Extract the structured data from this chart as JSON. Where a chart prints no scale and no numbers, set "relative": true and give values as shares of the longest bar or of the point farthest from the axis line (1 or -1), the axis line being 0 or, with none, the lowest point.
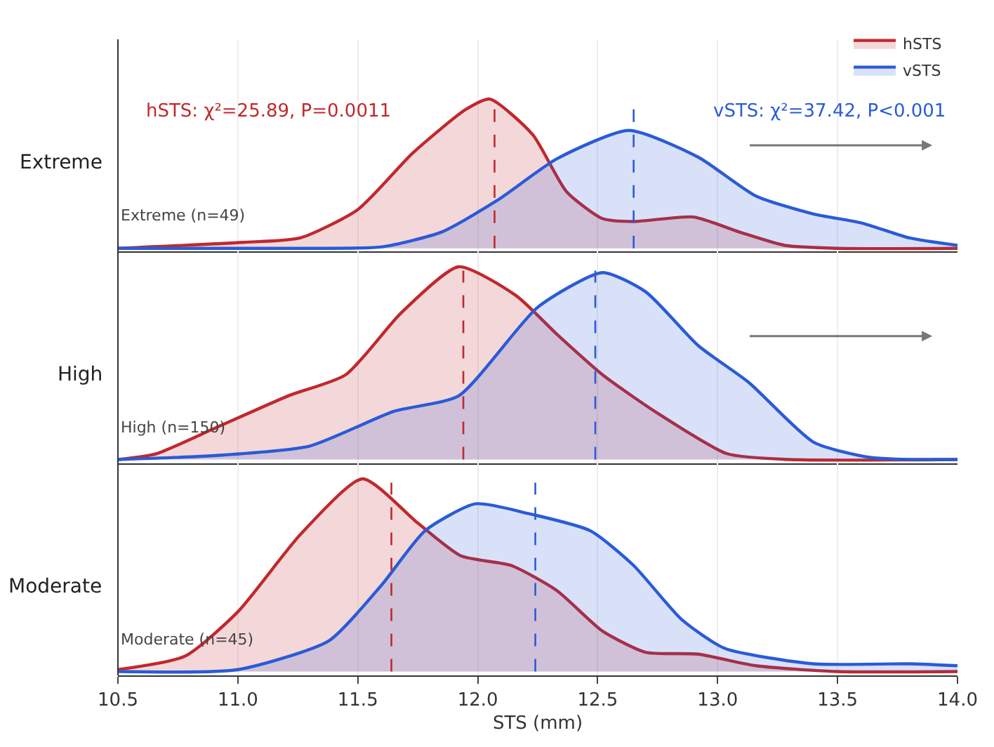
{
  "chart_data": [
    {
      "type": "area",
      "relative": true,
      "ylabel": "Extreme",
      "xlim": [
        10.5,
        14.0
      ],
      "tick_labels": false,
      "grid": "x",
      "legend": "top right",
      "annotations": [
        "hSTS: χ²=25.89, P=0.0011",
        "vSTS: χ²=37.42, P<0.001",
        "Extreme (n=49)"
      ],
      "ref_lines": [
        {
          "axis": "x",
          "value": 12.07,
          "color": "#c0282d",
          "line_style": "dashed"
        },
        {
          "axis": "x",
          "value": 12.65,
          "color": "#2a5bd7",
          "line_style": "dashed"
        }
      ],
      "series": [
        {
          "name": "hSTS",
          "color": "#c0282d",
          "x": [
            10.5,
            11.02,
            11.26,
            11.5,
            11.73,
            11.95,
            12.05,
            12.23,
            12.37,
            12.52,
            12.65,
            12.9,
            13.09,
            13.28,
            13.5,
            14.0
          ],
          "values": [
            0,
            0.04,
            0.07,
            0.26,
            0.64,
            0.93,
            1,
            0.76,
            0.38,
            0.2,
            0.18,
            0.21,
            0.11,
            0.02,
            0,
            0
          ]
        },
        {
          "name": "vSTS",
          "color": "#2a5bd7",
          "x": [
            10.5,
            11.3,
            11.6,
            11.85,
            12.08,
            12.33,
            12.63,
            12.92,
            13.16,
            13.4,
            13.6,
            13.8,
            14.0
          ],
          "values": [
            0,
            0,
            0.01,
            0.11,
            0.32,
            0.6,
            0.79,
            0.61,
            0.35,
            0.23,
            0.17,
            0.07,
            0.02
          ]
        }
      ]
    },
    {
      "type": "area",
      "relative": true,
      "ylabel": "High",
      "xlim": [
        10.5,
        14.0
      ],
      "tick_labels": false,
      "grid": "x",
      "annotations": [
        "High (n=150)"
      ],
      "ref_lines": [
        {
          "axis": "x",
          "value": 11.94,
          "color": "#c0282d",
          "line_style": "dashed"
        },
        {
          "axis": "x",
          "value": 12.49,
          "color": "#2a5bd7",
          "line_style": "dashed"
        }
      ],
      "series": [
        {
          "color": "#c0282d",
          "x": [
            10.5,
            10.66,
            10.9,
            11.21,
            11.45,
            11.68,
            11.92,
            12.16,
            12.33,
            12.52,
            12.75,
            13.04,
            13.3,
            14.0
          ],
          "values": [
            0,
            0.03,
            0.16,
            0.33,
            0.44,
            0.76,
            1,
            0.85,
            0.65,
            0.44,
            0.24,
            0.03,
            0,
            0
          ]
        },
        {
          "color": "#2a5bd7",
          "x": [
            10.5,
            10.9,
            11.3,
            11.65,
            11.92,
            12.25,
            12.52,
            12.7,
            12.92,
            13.13,
            13.4,
            13.64,
            14.0
          ],
          "values": [
            0,
            0.02,
            0.07,
            0.25,
            0.33,
            0.79,
            0.97,
            0.87,
            0.59,
            0.4,
            0.09,
            0.01,
            0
          ]
        }
      ]
    },
    {
      "type": "area",
      "relative": true,
      "ylabel": "Moderate",
      "xlabel": "STS (mm)",
      "xlim": [
        10.5,
        14.0
      ],
      "xticks": [
        10.5,
        {
          "value": 11,
          "label": "11.0"
        },
        11.5,
        {
          "value": 12,
          "label": "12.0"
        },
        12.5,
        {
          "value": 13,
          "label": "13.0"
        },
        13.5,
        {
          "value": 14,
          "label": "14.0"
        }
      ],
      "tick_labels": "x",
      "grid": "x",
      "annotations": [
        "Moderate (n=45)"
      ],
      "ref_lines": [
        {
          "axis": "x",
          "value": 11.64,
          "color": "#c0282d",
          "line_style": "dashed"
        },
        {
          "axis": "x",
          "value": 12.24,
          "color": "#2a5bd7",
          "line_style": "dashed"
        }
      ],
      "series": [
        {
          "color": "#c0282d",
          "x": [
            10.5,
            10.78,
            11.0,
            11.26,
            11.52,
            11.75,
            11.93,
            12.14,
            12.33,
            12.52,
            12.7,
            12.92,
            13.16,
            13.5,
            14.0
          ],
          "values": [
            0.01,
            0.08,
            0.31,
            0.71,
            1,
            0.77,
            0.6,
            0.55,
            0.42,
            0.21,
            0.1,
            0.09,
            0.03,
            0,
            0
          ]
        },
        {
          "color": "#2a5bd7",
          "x": [
            10.5,
            11.0,
            11.38,
            11.6,
            11.78,
            11.99,
            12.21,
            12.47,
            12.65,
            12.85,
            13.03,
            13.4,
            13.8,
            14.0
          ],
          "values": [
            0,
            0.01,
            0.16,
            0.45,
            0.73,
            0.87,
            0.82,
            0.73,
            0.55,
            0.27,
            0.12,
            0.04,
            0.04,
            0.03
          ]
        }
      ]
    }
  ]
}
